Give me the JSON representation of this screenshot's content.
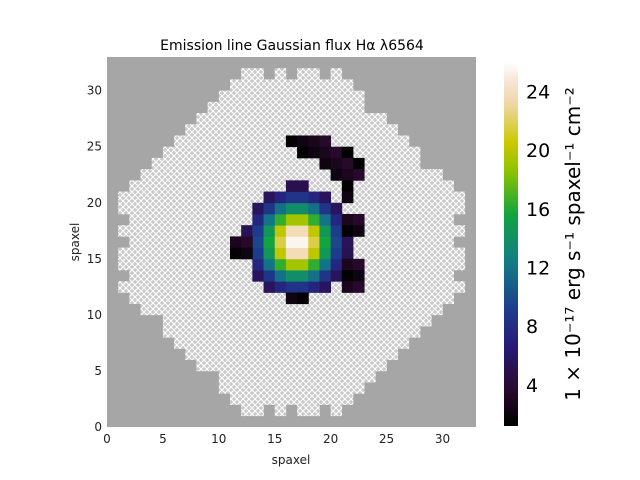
{
  "chart_data": {
    "type": "heatmap",
    "title": "Emission line Gaussian flux Hα λ6564",
    "xlabel": "spaxel",
    "ylabel": "spaxel",
    "xlim": [
      0,
      33
    ],
    "ylim": [
      0,
      33
    ],
    "xticks": [
      0,
      5,
      10,
      15,
      20,
      25,
      30
    ],
    "yticks": [
      0,
      5,
      10,
      15,
      20,
      25,
      30
    ],
    "grid": false,
    "colormap": "gist_ncar-like (black-purple-blue-teal-green-yellow-peach-white)",
    "colorbar": {
      "label": "1 × 10⁻¹⁷ erg s⁻¹ spaxel⁻¹ cm⁻²",
      "range": [
        1.2,
        26.0
      ],
      "ticks": [
        4,
        8,
        12,
        16,
        20,
        24
      ]
    },
    "background_color": "#a6a6a6",
    "masked_region_style": "white cross-hatch on light grey",
    "masked_region_shape": "octagonal IFU footprint centred near spaxel (16.5, 16.5), radius ~15",
    "peak": {
      "x": 17,
      "y": 16.5,
      "value": 26
    },
    "core_radius_spaxels": 5
  }
}
